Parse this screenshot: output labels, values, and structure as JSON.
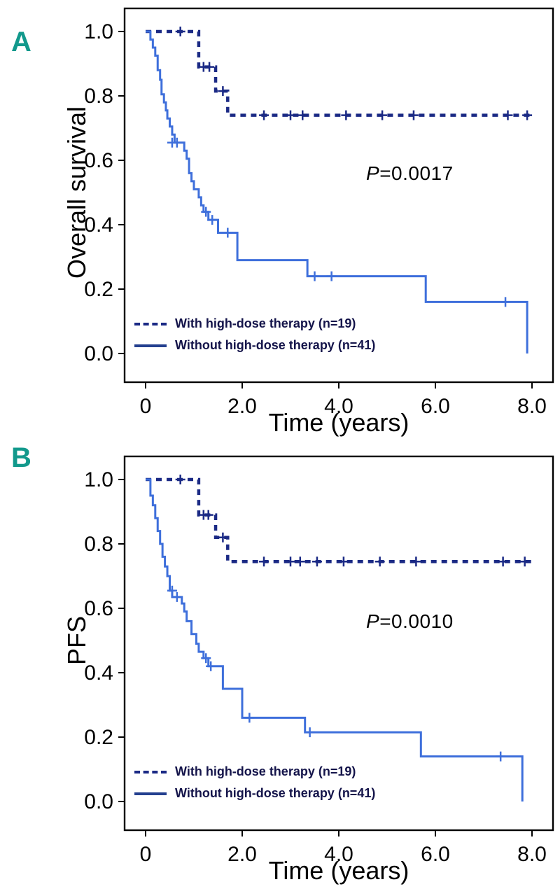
{
  "colors": {
    "panel_letter": "#12998c",
    "frame": "#000000",
    "with_hdt_line": "#1b2a85",
    "without_hdt_line": "#3e6fdb",
    "legend_text": "#14144a"
  },
  "chart_data": [
    {
      "type": "line",
      "subtype": "kaplan-meier-step",
      "panel_label": "A",
      "xlabel": "Time (years)",
      "ylabel": "Overall survival",
      "p_label": "P",
      "p_value": "=0.0017",
      "grid": false,
      "legend_position": "lower left",
      "xlim": [
        -0.45,
        8.45
      ],
      "ylim": [
        -0.07,
        1.07
      ],
      "xticks": [
        {
          "v": 0,
          "label": "0"
        },
        {
          "v": 2,
          "label": "2.0"
        },
        {
          "v": 4,
          "label": "4.0"
        },
        {
          "v": 6,
          "label": "6.0"
        },
        {
          "v": 8,
          "label": "8.0"
        }
      ],
      "yticks": [
        {
          "v": 0.0,
          "label": "0.0"
        },
        {
          "v": 0.2,
          "label": "0.2"
        },
        {
          "v": 0.4,
          "label": "0.4"
        },
        {
          "v": 0.6,
          "label": "0.6"
        },
        {
          "v": 0.8,
          "label": "0.8"
        },
        {
          "v": 1.0,
          "label": "1.0"
        }
      ],
      "series": [
        {
          "name": "With high-dose therapy (n=19)",
          "style": "dashed",
          "color": "#1b2a85",
          "legend_color": "#1b2a85",
          "steps": [
            [
              0,
              1.0
            ],
            [
              1.1,
              0.89
            ],
            [
              1.45,
              0.815
            ],
            [
              1.7,
              0.74
            ],
            [
              8.0,
              0.74
            ]
          ],
          "censors": [
            [
              0.72,
              1.0
            ],
            [
              1.2,
              0.89
            ],
            [
              1.32,
              0.89
            ],
            [
              1.6,
              0.815
            ],
            [
              2.45,
              0.74
            ],
            [
              3.0,
              0.74
            ],
            [
              3.25,
              0.74
            ],
            [
              4.15,
              0.74
            ],
            [
              4.9,
              0.74
            ],
            [
              5.55,
              0.74
            ],
            [
              7.5,
              0.74
            ],
            [
              7.9,
              0.74
            ]
          ]
        },
        {
          "name": "Without high-dose therapy (n=41)",
          "style": "solid",
          "color": "#3e6fdb",
          "legend_color": "#24408f",
          "steps": [
            [
              0,
              1.0
            ],
            [
              0.1,
              0.975
            ],
            [
              0.15,
              0.95
            ],
            [
              0.2,
              0.925
            ],
            [
              0.25,
              0.88
            ],
            [
              0.3,
              0.85
            ],
            [
              0.33,
              0.805
            ],
            [
              0.38,
              0.78
            ],
            [
              0.42,
              0.755
            ],
            [
              0.45,
              0.73
            ],
            [
              0.5,
              0.705
            ],
            [
              0.55,
              0.68
            ],
            [
              0.6,
              0.655
            ],
            [
              0.8,
              0.63
            ],
            [
              0.85,
              0.605
            ],
            [
              0.9,
              0.56
            ],
            [
              0.95,
              0.535
            ],
            [
              1.0,
              0.51
            ],
            [
              1.1,
              0.485
            ],
            [
              1.15,
              0.46
            ],
            [
              1.2,
              0.44
            ],
            [
              1.3,
              0.415
            ],
            [
              1.5,
              0.375
            ],
            [
              1.9,
              0.29
            ],
            [
              3.35,
              0.24
            ],
            [
              5.8,
              0.16
            ],
            [
              7.9,
              0.0
            ]
          ],
          "censors": [
            [
              0.55,
              0.655
            ],
            [
              0.65,
              0.655
            ],
            [
              1.25,
              0.44
            ],
            [
              1.38,
              0.415
            ],
            [
              1.7,
              0.375
            ],
            [
              3.5,
              0.24
            ],
            [
              3.85,
              0.24
            ],
            [
              7.45,
              0.16
            ]
          ]
        }
      ]
    },
    {
      "type": "line",
      "subtype": "kaplan-meier-step",
      "panel_label": "B",
      "xlabel": "Time (years)",
      "ylabel": "PFS",
      "p_label": "P",
      "p_value": "=0.0010",
      "grid": false,
      "legend_position": "lower left",
      "xlim": [
        -0.45,
        8.45
      ],
      "ylim": [
        -0.07,
        1.07
      ],
      "xticks": [
        {
          "v": 0,
          "label": "0"
        },
        {
          "v": 2,
          "label": "2.0"
        },
        {
          "v": 4,
          "label": "4.0"
        },
        {
          "v": 6,
          "label": "6.0"
        },
        {
          "v": 8,
          "label": "8.0"
        }
      ],
      "yticks": [
        {
          "v": 0.0,
          "label": "0.0"
        },
        {
          "v": 0.2,
          "label": "0.2"
        },
        {
          "v": 0.4,
          "label": "0.4"
        },
        {
          "v": 0.6,
          "label": "0.6"
        },
        {
          "v": 0.8,
          "label": "0.8"
        },
        {
          "v": 1.0,
          "label": "1.0"
        }
      ],
      "series": [
        {
          "name": "With high-dose therapy (n=19)",
          "style": "dashed",
          "color": "#1b2a85",
          "legend_color": "#1b2a85",
          "steps": [
            [
              0,
              1.0
            ],
            [
              1.1,
              0.89
            ],
            [
              1.45,
              0.82
            ],
            [
              1.7,
              0.745
            ],
            [
              8.0,
              0.745
            ]
          ],
          "censors": [
            [
              0.72,
              1.0
            ],
            [
              1.2,
              0.89
            ],
            [
              1.3,
              0.89
            ],
            [
              1.6,
              0.82
            ],
            [
              2.45,
              0.745
            ],
            [
              3.0,
              0.745
            ],
            [
              3.2,
              0.745
            ],
            [
              3.55,
              0.745
            ],
            [
              4.1,
              0.745
            ],
            [
              4.85,
              0.745
            ],
            [
              5.6,
              0.745
            ],
            [
              7.4,
              0.745
            ],
            [
              7.85,
              0.745
            ]
          ]
        },
        {
          "name": "Without high-dose therapy (n=41)",
          "style": "solid",
          "color": "#3e6fdb",
          "legend_color": "#24408f",
          "steps": [
            [
              0,
              1.0
            ],
            [
              0.1,
              0.95
            ],
            [
              0.15,
              0.92
            ],
            [
              0.2,
              0.88
            ],
            [
              0.25,
              0.84
            ],
            [
              0.3,
              0.8
            ],
            [
              0.35,
              0.76
            ],
            [
              0.4,
              0.73
            ],
            [
              0.45,
              0.7
            ],
            [
              0.5,
              0.655
            ],
            [
              0.55,
              0.635
            ],
            [
              0.75,
              0.615
            ],
            [
              0.8,
              0.59
            ],
            [
              0.85,
              0.56
            ],
            [
              0.95,
              0.52
            ],
            [
              1.05,
              0.49
            ],
            [
              1.1,
              0.465
            ],
            [
              1.2,
              0.445
            ],
            [
              1.3,
              0.42
            ],
            [
              1.6,
              0.35
            ],
            [
              2.0,
              0.26
            ],
            [
              3.3,
              0.215
            ],
            [
              5.7,
              0.14
            ],
            [
              7.8,
              0.0
            ]
          ],
          "censors": [
            [
              0.55,
              0.655
            ],
            [
              0.65,
              0.635
            ],
            [
              1.25,
              0.445
            ],
            [
              1.35,
              0.42
            ],
            [
              2.15,
              0.26
            ],
            [
              3.4,
              0.215
            ],
            [
              7.35,
              0.14
            ]
          ]
        }
      ]
    }
  ]
}
